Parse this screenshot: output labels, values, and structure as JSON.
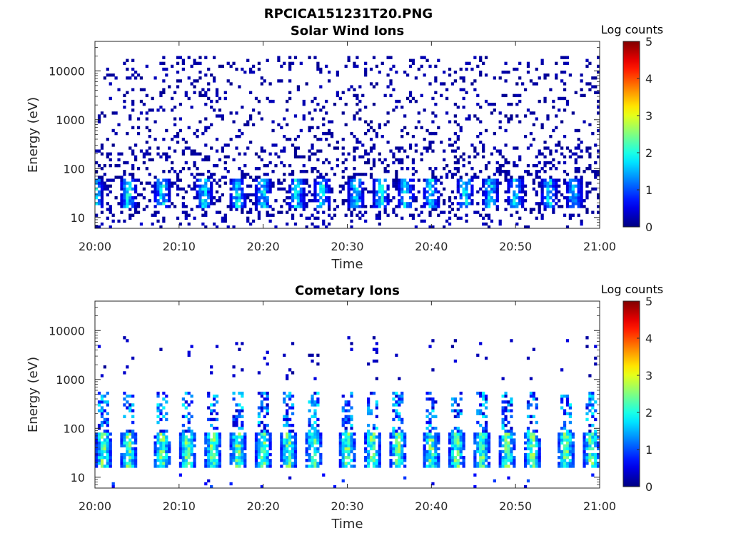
{
  "figure": {
    "title": "RPCICA151231T20.PNG"
  },
  "colorbar": {
    "label": "Log counts",
    "range": [
      0,
      5
    ],
    "ticks": [
      "0",
      "1",
      "2",
      "3",
      "4",
      "5"
    ],
    "colormap": "jet"
  },
  "chart_data": [
    {
      "type": "heatmap",
      "title": "Solar Wind Ions",
      "xlabel": "Time",
      "ylabel": "Energy (eV)",
      "xlim": [
        "20:00",
        "21:00"
      ],
      "xticks": [
        "20:00",
        "20:10",
        "20:20",
        "20:30",
        "20:40",
        "20:50",
        "21:00"
      ],
      "yscale": "log",
      "ylim": [
        6,
        40000
      ],
      "yticks": [
        "10",
        "100",
        "1000",
        "10000"
      ],
      "zlabel": "Log counts",
      "zlim": [
        0,
        5
      ],
      "pattern": {
        "burst_times": [
          "20:00",
          "20:04",
          "20:08",
          "20:13",
          "20:17",
          "20:20",
          "20:24",
          "20:27",
          "20:31",
          "20:34",
          "20:37",
          "20:40",
          "20:44",
          "20:47",
          "20:50",
          "20:54",
          "20:57"
        ],
        "core_energy_range_eV": [
          15,
          60
        ],
        "core_log_counts_max": 2.3,
        "background_energy_range_eV": [
          10,
          20000
        ],
        "background_log_counts": 0.2
      }
    },
    {
      "type": "heatmap",
      "title": "Cometary Ions",
      "xlabel": "Time",
      "ylabel": "Energy (eV)",
      "xlim": [
        "20:00",
        "21:00"
      ],
      "xticks": [
        "20:00",
        "20:10",
        "20:20",
        "20:30",
        "20:40",
        "20:50",
        "21:00"
      ],
      "yscale": "log",
      "ylim": [
        6,
        40000
      ],
      "yticks": [
        "10",
        "100",
        "1000",
        "10000"
      ],
      "zlabel": "Log counts",
      "zlim": [
        0,
        5
      ],
      "pattern": {
        "burst_times": [
          "20:01",
          "20:04",
          "20:08",
          "20:11",
          "20:14",
          "20:17",
          "20:20",
          "20:23",
          "20:26",
          "20:30",
          "20:33",
          "20:36",
          "20:40",
          "20:43",
          "20:46",
          "20:49",
          "20:52",
          "20:56",
          "20:59"
        ],
        "core_energy_range_eV": [
          15,
          80
        ],
        "core_log_counts_max": 3.1,
        "tail_energy_range_eV": [
          80,
          600
        ],
        "sparse_high_energy_eV": [
          1000,
          8000
        ]
      }
    }
  ]
}
